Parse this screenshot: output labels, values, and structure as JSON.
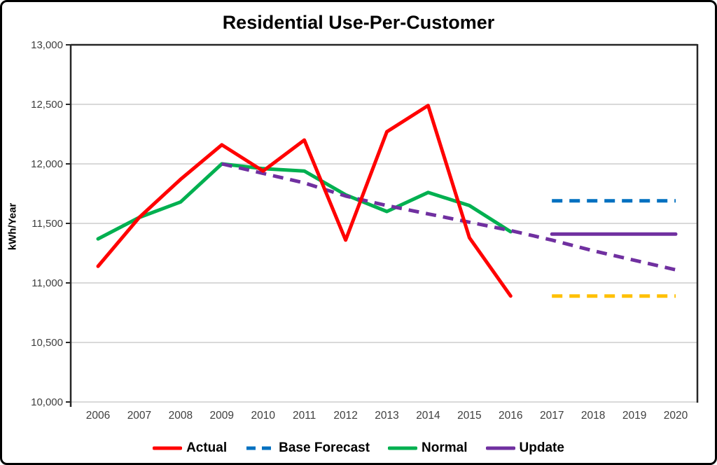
{
  "chart_data": {
    "type": "line",
    "title": "Residential Use-Per-Customer",
    "xlabel": "",
    "ylabel": "kWh/Year",
    "ylim": [
      10000,
      13000
    ],
    "y_tick_step": 500,
    "y_tick_labels": [
      "13,000",
      "12,500",
      "12,000",
      "11,500",
      "11,000",
      "10,500",
      "10,000"
    ],
    "x_tick_labels": [
      "2006",
      "2007",
      "2008",
      "2009",
      "2010",
      "2011",
      "2012",
      "2013",
      "2014",
      "2015",
      "2016",
      "2017",
      "2018",
      "2019",
      "2020"
    ],
    "grid": "horizontal-only",
    "legend_position": "bottom",
    "series": [
      {
        "id": "normal",
        "legend_label": "Normal",
        "color": "#00B050",
        "style": "solid",
        "x": [
          2006,
          2007,
          2008,
          2009,
          2010,
          2011,
          2012,
          2013,
          2014,
          2015,
          2016
        ],
        "values": [
          11370,
          11550,
          11680,
          12000,
          11960,
          11940,
          11740,
          11600,
          11760,
          11650,
          11430
        ]
      },
      {
        "id": "update-trend-dashed",
        "legend_label": null,
        "color": "#7030A0",
        "style": "dashed",
        "x": [
          2009,
          2010,
          2011,
          2012,
          2013,
          2014,
          2015,
          2016,
          2017,
          2018,
          2019,
          2020
        ],
        "values": [
          12000,
          11920,
          11840,
          11730,
          11650,
          11580,
          11510,
          11440,
          11360,
          11270,
          11190,
          11110
        ]
      },
      {
        "id": "base-forecast",
        "legend_label": "Base Forecast",
        "color": "#0070C0",
        "style": "dashed",
        "x": [
          2017,
          2018,
          2019,
          2020
        ],
        "values": [
          11690,
          11690,
          11690,
          11690
        ]
      },
      {
        "id": "update",
        "legend_label": "Update",
        "color": "#7030A0",
        "style": "solid",
        "x": [
          2017,
          2018,
          2019,
          2020
        ],
        "values": [
          11410,
          11410,
          11410,
          11410
        ]
      },
      {
        "id": "yellow-dashed-unlabeled",
        "legend_label": null,
        "color": "#FFC000",
        "style": "dashed",
        "x": [
          2017,
          2018,
          2019,
          2020
        ],
        "values": [
          10890,
          10890,
          10890,
          10890
        ]
      },
      {
        "id": "actual",
        "legend_label": "Actual",
        "color": "#FF0000",
        "style": "solid",
        "x": [
          2006,
          2007,
          2008,
          2009,
          2010,
          2011,
          2012,
          2013,
          2014,
          2015,
          2016
        ],
        "values": [
          11140,
          11550,
          11870,
          12160,
          11940,
          12200,
          11360,
          12270,
          12490,
          11380,
          10890
        ]
      }
    ]
  },
  "legend": {
    "items": [
      {
        "label": "Actual",
        "color": "#FF0000",
        "dashed": false
      },
      {
        "label": "Base Forecast",
        "color": "#0070C0",
        "dashed": true
      },
      {
        "label": "Normal",
        "color": "#00B050",
        "dashed": false
      },
      {
        "label": "Update",
        "color": "#7030A0",
        "dashed": false
      }
    ]
  },
  "style_colors": {
    "grid": "#D9D9D9",
    "axis_frame": "#262626",
    "tick_label": "#3F3F3F",
    "title": "#000000"
  }
}
